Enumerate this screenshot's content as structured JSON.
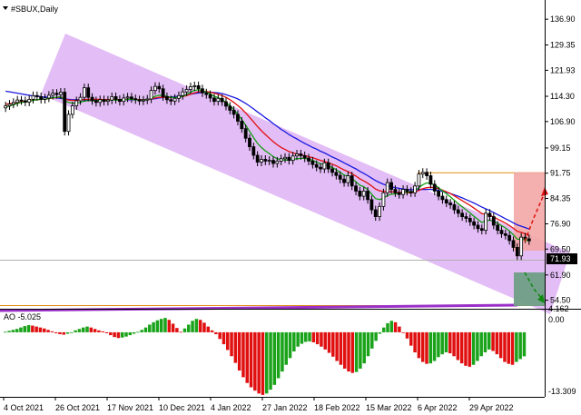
{
  "header": {
    "title": "#SBUX,Daily"
  },
  "indicator": {
    "label": "AO -5.025",
    "y_max": "4.162",
    "y_zero": "0.00",
    "y_min": "-13.309"
  },
  "price": {
    "current": "71.93"
  },
  "colors": {
    "channel": "#d9a7f2",
    "ma_fast": "#10a010",
    "ma_mid": "#e01010",
    "ma_slow": "#1818e0",
    "support": "#9b30c8",
    "resistance": "#e08a10",
    "target_up": "#f3a6a6",
    "target_down": "#6f9e86",
    "ao_up": "#1aa31a",
    "ao_down": "#e01010"
  },
  "chart_data": [
    {
      "type": "candlestick",
      "title": "#SBUX,Daily",
      "y_ticks": [
        "136.90",
        "129.35",
        "121.93",
        "114.30",
        "106.90",
        "99.15",
        "91.75",
        "84.35",
        "76.90",
        "69.50",
        "61.90",
        "54.50"
      ],
      "x_ticks": [
        "4 Oct 2021",
        "26 Oct 2021",
        "17 Nov 2021",
        "10 Dec 2021",
        "4 Jan 2022",
        "27 Jan 2022",
        "18 Feb 2022",
        "15 Mar 2022",
        "6 Apr 2022",
        "29 Apr 2022"
      ],
      "ylim": [
        52.0,
        142.0
      ],
      "close": [
        111.5,
        112.0,
        112.5,
        113.2,
        113.0,
        112.6,
        113.4,
        114.5,
        114.2,
        113.4,
        113.8,
        114.6,
        115.2,
        114.8,
        115.5,
        104.0,
        109.0,
        111.5,
        113.0,
        114.0,
        116.8,
        114.0,
        113.0,
        112.5,
        113.3,
        112.8,
        113.2,
        114.2,
        113.4,
        112.8,
        113.8,
        114.1,
        113.6,
        113.3,
        112.9,
        113.2,
        113.5,
        116.0,
        117.2,
        116.5,
        114.2,
        113.3,
        112.9,
        113.7,
        114.5,
        115.6,
        116.3,
        117.1,
        117.4,
        116.5,
        115.3,
        114.8,
        113.8,
        112.8,
        113.7,
        112.7,
        111.4,
        110.2,
        109.0,
        107.0,
        104.8,
        102.0,
        99.5,
        97.0,
        95.0,
        95.8,
        95.3,
        95.5,
        94.6,
        95.3,
        96.0,
        96.4,
        95.5,
        96.8,
        97.4,
        96.9,
        96.2,
        95.3,
        94.3,
        93.5,
        93.0,
        94.8,
        93.0,
        92.0,
        91.1,
        90.0,
        89.0,
        91.0,
        88.0,
        86.5,
        85.0,
        86.5,
        84.0,
        81.0,
        79.0,
        82.0,
        86.0,
        89.0,
        87.0,
        86.0,
        85.5,
        87.0,
        86.4,
        86.0,
        88.0,
        91.5,
        92.0,
        91.0,
        88.5,
        86.5,
        85.0,
        84.0,
        83.0,
        82.5,
        81.0,
        80.0,
        79.0,
        78.5,
        77.5,
        76.5,
        75.5,
        75.0,
        80.0,
        79.0,
        76.5,
        75.0,
        74.0,
        73.5,
        72.0,
        70.0,
        67.5,
        73.0,
        72.5,
        71.93
      ],
      "sma_fast": [
        111.2,
        111.4,
        111.8,
        112.2,
        112.5,
        112.6,
        112.8,
        113.1,
        113.3,
        113.4,
        113.5,
        113.7,
        113.9,
        114.0,
        114.2,
        113.0,
        112.5,
        112.3,
        112.3,
        112.5,
        112.9,
        113.0,
        113.0,
        113.0,
        113.1,
        113.0,
        113.1,
        113.3,
        113.2,
        113.1,
        113.2,
        113.4,
        113.4,
        113.3,
        113.2,
        113.2,
        113.3,
        113.7,
        114.3,
        114.6,
        114.5,
        114.3,
        114.0,
        113.9,
        114.0,
        114.3,
        114.8,
        115.5,
        116.0,
        116.2,
        115.9,
        115.5,
        115.0,
        114.3,
        113.9,
        113.3,
        112.5,
        111.5,
        110.4,
        109.0,
        107.5,
        105.8,
        104.0,
        102.2,
        100.5,
        99.3,
        98.3,
        97.5,
        96.6,
        96.0,
        95.7,
        95.6,
        95.6,
        95.8,
        96.0,
        96.1,
        96.1,
        95.9,
        95.5,
        95.0,
        94.5,
        94.3,
        93.9,
        93.4,
        92.8,
        92.0,
        91.2,
        90.9,
        90.2,
        89.2,
        88.2,
        87.8,
        86.9,
        85.6,
        84.3,
        84.0,
        84.4,
        85.2,
        85.6,
        85.7,
        85.8,
        86.1,
        86.2,
        86.2,
        86.6,
        87.5,
        88.4,
        88.9,
        88.8,
        88.3,
        87.5,
        86.6,
        85.7,
        84.8,
        83.8,
        82.8,
        81.9,
        81.0,
        80.1,
        79.1,
        78.2,
        77.3,
        77.8,
        78.0,
        77.6,
        77.0,
        76.4,
        75.7,
        74.8,
        73.7,
        72.4,
        72.4,
        72.2,
        71.9
      ],
      "sma_mid": [
        112.0,
        112.1,
        112.3,
        112.5,
        112.7,
        112.8,
        113.0,
        113.2,
        113.3,
        113.4,
        113.5,
        113.6,
        113.8,
        113.9,
        114.1,
        113.5,
        113.2,
        113.1,
        113.1,
        113.2,
        113.4,
        113.4,
        113.4,
        113.4,
        113.4,
        113.3,
        113.3,
        113.4,
        113.4,
        113.3,
        113.3,
        113.4,
        113.4,
        113.4,
        113.3,
        113.3,
        113.3,
        113.5,
        113.8,
        114.0,
        114.0,
        114.0,
        113.9,
        113.9,
        114.0,
        114.2,
        114.5,
        114.9,
        115.3,
        115.6,
        115.7,
        115.7,
        115.5,
        115.2,
        114.9,
        114.5,
        114.0,
        113.3,
        112.5,
        111.6,
        110.6,
        109.4,
        108.1,
        106.8,
        105.4,
        104.2,
        103.1,
        102.0,
        101.0,
        100.1,
        99.3,
        98.7,
        98.1,
        97.7,
        97.4,
        97.1,
        96.9,
        96.6,
        96.3,
        95.9,
        95.5,
        95.2,
        94.8,
        94.4,
        93.9,
        93.3,
        92.7,
        92.2,
        91.6,
        90.9,
        90.1,
        89.5,
        88.8,
        88.0,
        87.1,
        86.6,
        86.4,
        86.4,
        86.3,
        86.2,
        86.1,
        86.1,
        86.0,
        86.0,
        86.2,
        86.7,
        87.2,
        87.5,
        87.6,
        87.5,
        87.2,
        86.8,
        86.3,
        85.8,
        85.1,
        84.4,
        83.7,
        83.0,
        82.3,
        81.5,
        80.7,
        79.9,
        79.7,
        79.4,
        78.9,
        78.3,
        77.7,
        77.1,
        76.4,
        75.6,
        74.7,
        74.4,
        74.0,
        73.6
      ],
      "sma_slow": [
        115.8,
        115.6,
        115.4,
        115.2,
        115.0,
        114.8,
        114.6,
        114.4,
        114.3,
        114.2,
        114.1,
        114.0,
        113.9,
        113.8,
        113.7,
        113.5,
        113.4,
        113.3,
        113.3,
        113.3,
        113.3,
        113.3,
        113.3,
        113.3,
        113.3,
        113.3,
        113.3,
        113.3,
        113.3,
        113.3,
        113.3,
        113.3,
        113.3,
        113.3,
        113.3,
        113.3,
        113.4,
        113.5,
        113.6,
        113.8,
        113.9,
        114.0,
        114.1,
        114.2,
        114.3,
        114.5,
        114.7,
        114.9,
        115.1,
        115.3,
        115.4,
        115.5,
        115.5,
        115.4,
        115.3,
        115.1,
        114.8,
        114.4,
        114.0,
        113.5,
        112.9,
        112.2,
        111.4,
        110.6,
        109.7,
        108.9,
        108.0,
        107.2,
        106.3,
        105.5,
        104.6,
        103.9,
        103.1,
        102.4,
        101.8,
        101.1,
        100.5,
        99.9,
        99.3,
        98.8,
        98.2,
        97.7,
        97.1,
        96.5,
        96.0,
        95.4,
        94.8,
        94.2,
        93.6,
        93.0,
        92.3,
        91.7,
        91.0,
        90.3,
        89.6,
        89.0,
        88.5,
        88.1,
        87.8,
        87.5,
        87.3,
        87.1,
        87.0,
        86.9,
        86.9,
        86.9,
        87.0,
        87.0,
        87.0,
        86.9,
        86.7,
        86.4,
        86.1,
        85.8,
        85.4,
        85.0,
        84.5,
        84.0,
        83.5,
        83.0,
        82.4,
        81.8,
        81.3,
        80.8,
        80.2,
        79.6,
        79.0,
        78.4,
        77.8,
        77.2,
        76.6,
        76.2,
        75.8,
        75.4
      ],
      "channel_upper": [
        [
          0.0,
          116.0
        ],
        [
          1.0,
          74.0
        ]
      ],
      "channel_lower": [
        [
          0.0,
          95.0
        ],
        [
          1.0,
          52.0
        ]
      ],
      "resistance_level": 92.0,
      "support_level": 60.0,
      "support_trend": [
        [
          0.0,
          56.3
        ],
        [
          1.0,
          59.8
        ]
      ]
    },
    {
      "type": "bar",
      "title": "AO -5.025",
      "ylim": [
        -13.309,
        4.162
      ],
      "values": [
        0.1,
        0.3,
        0.5,
        0.7,
        1.0,
        1.3,
        1.5,
        1.4,
        1.2,
        1.0,
        0.8,
        0.5,
        0.2,
        -0.2,
        -0.4,
        -0.5,
        -0.3,
        0.0,
        0.4,
        0.7,
        1.0,
        1.2,
        1.0,
        0.7,
        0.4,
        0.2,
        -0.2,
        -0.6,
        -1.0,
        -1.2,
        -1.1,
        -0.9,
        -0.6,
        -0.3,
        0.1,
        0.5,
        1.0,
        1.6,
        2.1,
        2.5,
        2.8,
        3.0,
        2.6,
        1.8,
        0.9,
        0.1,
        0.8,
        1.6,
        2.4,
        2.8,
        2.6,
        2.0,
        1.2,
        0.4,
        -0.4,
        -1.4,
        -2.5,
        -3.7,
        -5.0,
        -6.4,
        -8.0,
        -9.4,
        -10.6,
        -11.5,
        -12.2,
        -12.8,
        -13.1,
        -12.8,
        -12.0,
        -11.0,
        -9.6,
        -8.2,
        -6.8,
        -5.4,
        -4.0,
        -3.0,
        -2.4,
        -2.0,
        -1.9,
        -2.1,
        -2.5,
        -3.0,
        -3.6,
        -4.3,
        -5.1,
        -6.0,
        -6.8,
        -7.6,
        -8.2,
        -8.5,
        -8.3,
        -7.6,
        -6.5,
        -5.0,
        -3.4,
        -1.8,
        -0.3,
        1.0,
        1.9,
        2.4,
        2.1,
        1.2,
        0.0,
        -1.3,
        -2.8,
        -4.2,
        -5.4,
        -6.2,
        -6.6,
        -6.5,
        -6.0,
        -5.2,
        -4.6,
        -4.2,
        -4.4,
        -5.0,
        -5.8,
        -6.5,
        -7.0,
        -7.2,
        -6.8,
        -6.0,
        -5.0,
        -4.2,
        -3.6,
        -3.9,
        -4.6,
        -5.4,
        -6.2,
        -6.6,
        -6.8,
        -6.2,
        -5.6,
        -5.025
      ]
    }
  ]
}
